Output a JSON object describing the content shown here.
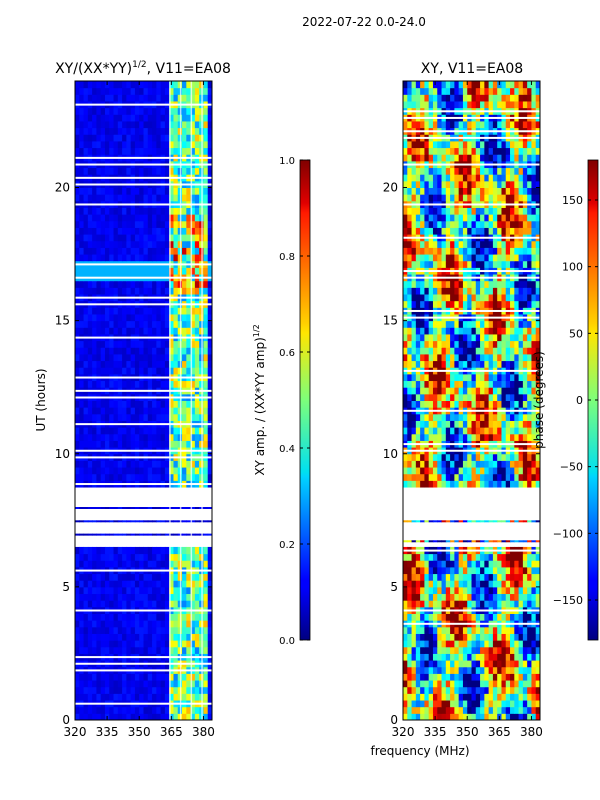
{
  "suptitle": "2022-07-22 0.0-24.0",
  "xlabel": "frequency (MHz)",
  "chart_data": [
    {
      "type": "heatmap",
      "title_main": "XY/(XX*YY)",
      "title_exp": "1/2",
      "title_tail": ", V11=EA08",
      "ylabel": "UT (hours)",
      "xlim": [
        320,
        384
      ],
      "ylim": [
        0,
        24
      ],
      "xticks": [
        {
          "label": "320",
          "value": 320
        },
        {
          "label": "335",
          "value": 335
        },
        {
          "label": "350",
          "value": 350
        },
        {
          "label": "365",
          "value": 365
        },
        {
          "label": "380",
          "value": 380
        }
      ],
      "yticks": [
        {
          "label": "0",
          "value": 0
        },
        {
          "label": "5",
          "value": 5
        },
        {
          "label": "10",
          "value": 10
        },
        {
          "label": "15",
          "value": 15
        },
        {
          "label": "20",
          "value": 20
        }
      ],
      "colorbar": {
        "label_main": "XY amp. / (XX*YY amp)",
        "label_exp": "1/2",
        "range": [
          0.0,
          1.0
        ],
        "ticks": [
          {
            "label": "0.0",
            "value": 0.0
          },
          {
            "label": "0.2",
            "value": 0.2
          },
          {
            "label": "0.4",
            "value": 0.4
          },
          {
            "label": "0.6",
            "value": 0.6
          },
          {
            "label": "0.8",
            "value": 0.8
          },
          {
            "label": "1.0",
            "value": 1.0
          }
        ]
      },
      "data_gaps_hours": [
        [
          6.4,
          8.8
        ]
      ],
      "rfi_band_mhz": [
        363,
        382
      ]
    },
    {
      "type": "heatmap",
      "title_main": "XY, V11=EA08",
      "xlim": [
        320,
        384
      ],
      "ylim": [
        0,
        24
      ],
      "xticks": [
        {
          "label": "320",
          "value": 320
        },
        {
          "label": "335",
          "value": 335
        },
        {
          "label": "350",
          "value": 350
        },
        {
          "label": "365",
          "value": 365
        },
        {
          "label": "380",
          "value": 380
        }
      ],
      "yticks": [
        {
          "label": "0",
          "value": 0
        },
        {
          "label": "5",
          "value": 5
        },
        {
          "label": "10",
          "value": 10
        },
        {
          "label": "15",
          "value": 15
        },
        {
          "label": "20",
          "value": 20
        }
      ],
      "colorbar": {
        "label_main": "phase (degrees)",
        "range": [
          -180,
          180
        ],
        "ticks": [
          {
            "label": "−150",
            "value": -150
          },
          {
            "label": "−100",
            "value": -100
          },
          {
            "label": "−50",
            "value": -50
          },
          {
            "label": "0",
            "value": 0
          },
          {
            "label": "50",
            "value": 50
          },
          {
            "label": "100",
            "value": 100
          },
          {
            "label": "150",
            "value": 150
          }
        ]
      },
      "data_gaps_hours": [
        [
          6.4,
          8.8
        ]
      ]
    }
  ]
}
